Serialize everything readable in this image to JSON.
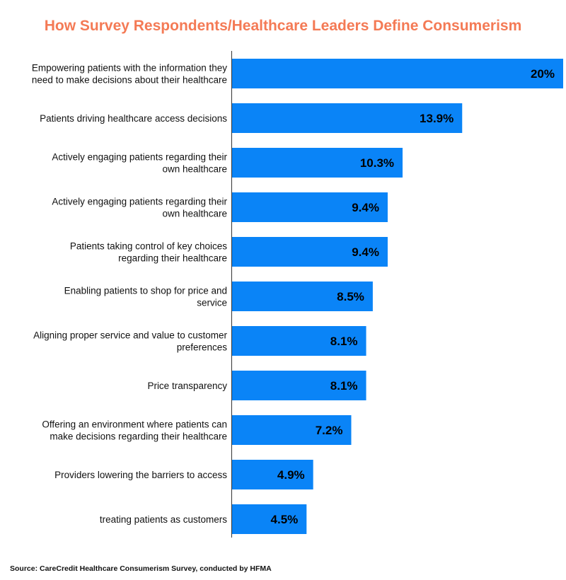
{
  "colors": {
    "bar": "#0a84f7",
    "title": "#f47a55",
    "axis": "#333333"
  },
  "chart_data": {
    "type": "bar",
    "orientation": "horizontal",
    "title": "How Survey Respondents/Healthcare Leaders Define Consumerism",
    "xlabel": "",
    "ylabel": "",
    "xlim": [
      0,
      20
    ],
    "grid": false,
    "legend": "none",
    "categories": [
      [
        "Empowering patients with the information they",
        "need to make decisions about their healthcare"
      ],
      [
        "Patients driving healthcare access decisions"
      ],
      [
        "Actively engaging patients regarding their",
        "own healthcare"
      ],
      [
        "Actively engaging patients regarding their",
        "own healthcare"
      ],
      [
        "Patients taking control of key choices",
        "regarding their healthcare"
      ],
      [
        "Enabling patients to shop for price and",
        "service"
      ],
      [
        "Aligning proper service and value to customer",
        "preferences"
      ],
      [
        "Price transparency"
      ],
      [
        "Offering an environment where patients can",
        "make decisions regarding their healthcare"
      ],
      [
        "Providers lowering the barriers to access"
      ],
      [
        "treating patients as customers"
      ]
    ],
    "values": [
      20,
      13.9,
      10.3,
      9.4,
      9.4,
      8.5,
      8.1,
      8.1,
      7.2,
      4.9,
      4.5
    ],
    "value_labels": [
      "20%",
      "13.9%",
      "10.3%",
      "9.4%",
      "9.4%",
      "8.5%",
      "8.1%",
      "8.1%",
      "7.2%",
      "4.9%",
      "4.5%"
    ]
  },
  "source": "Source: CareCredit Healthcare Consumerism Survey, conducted by HFMA"
}
